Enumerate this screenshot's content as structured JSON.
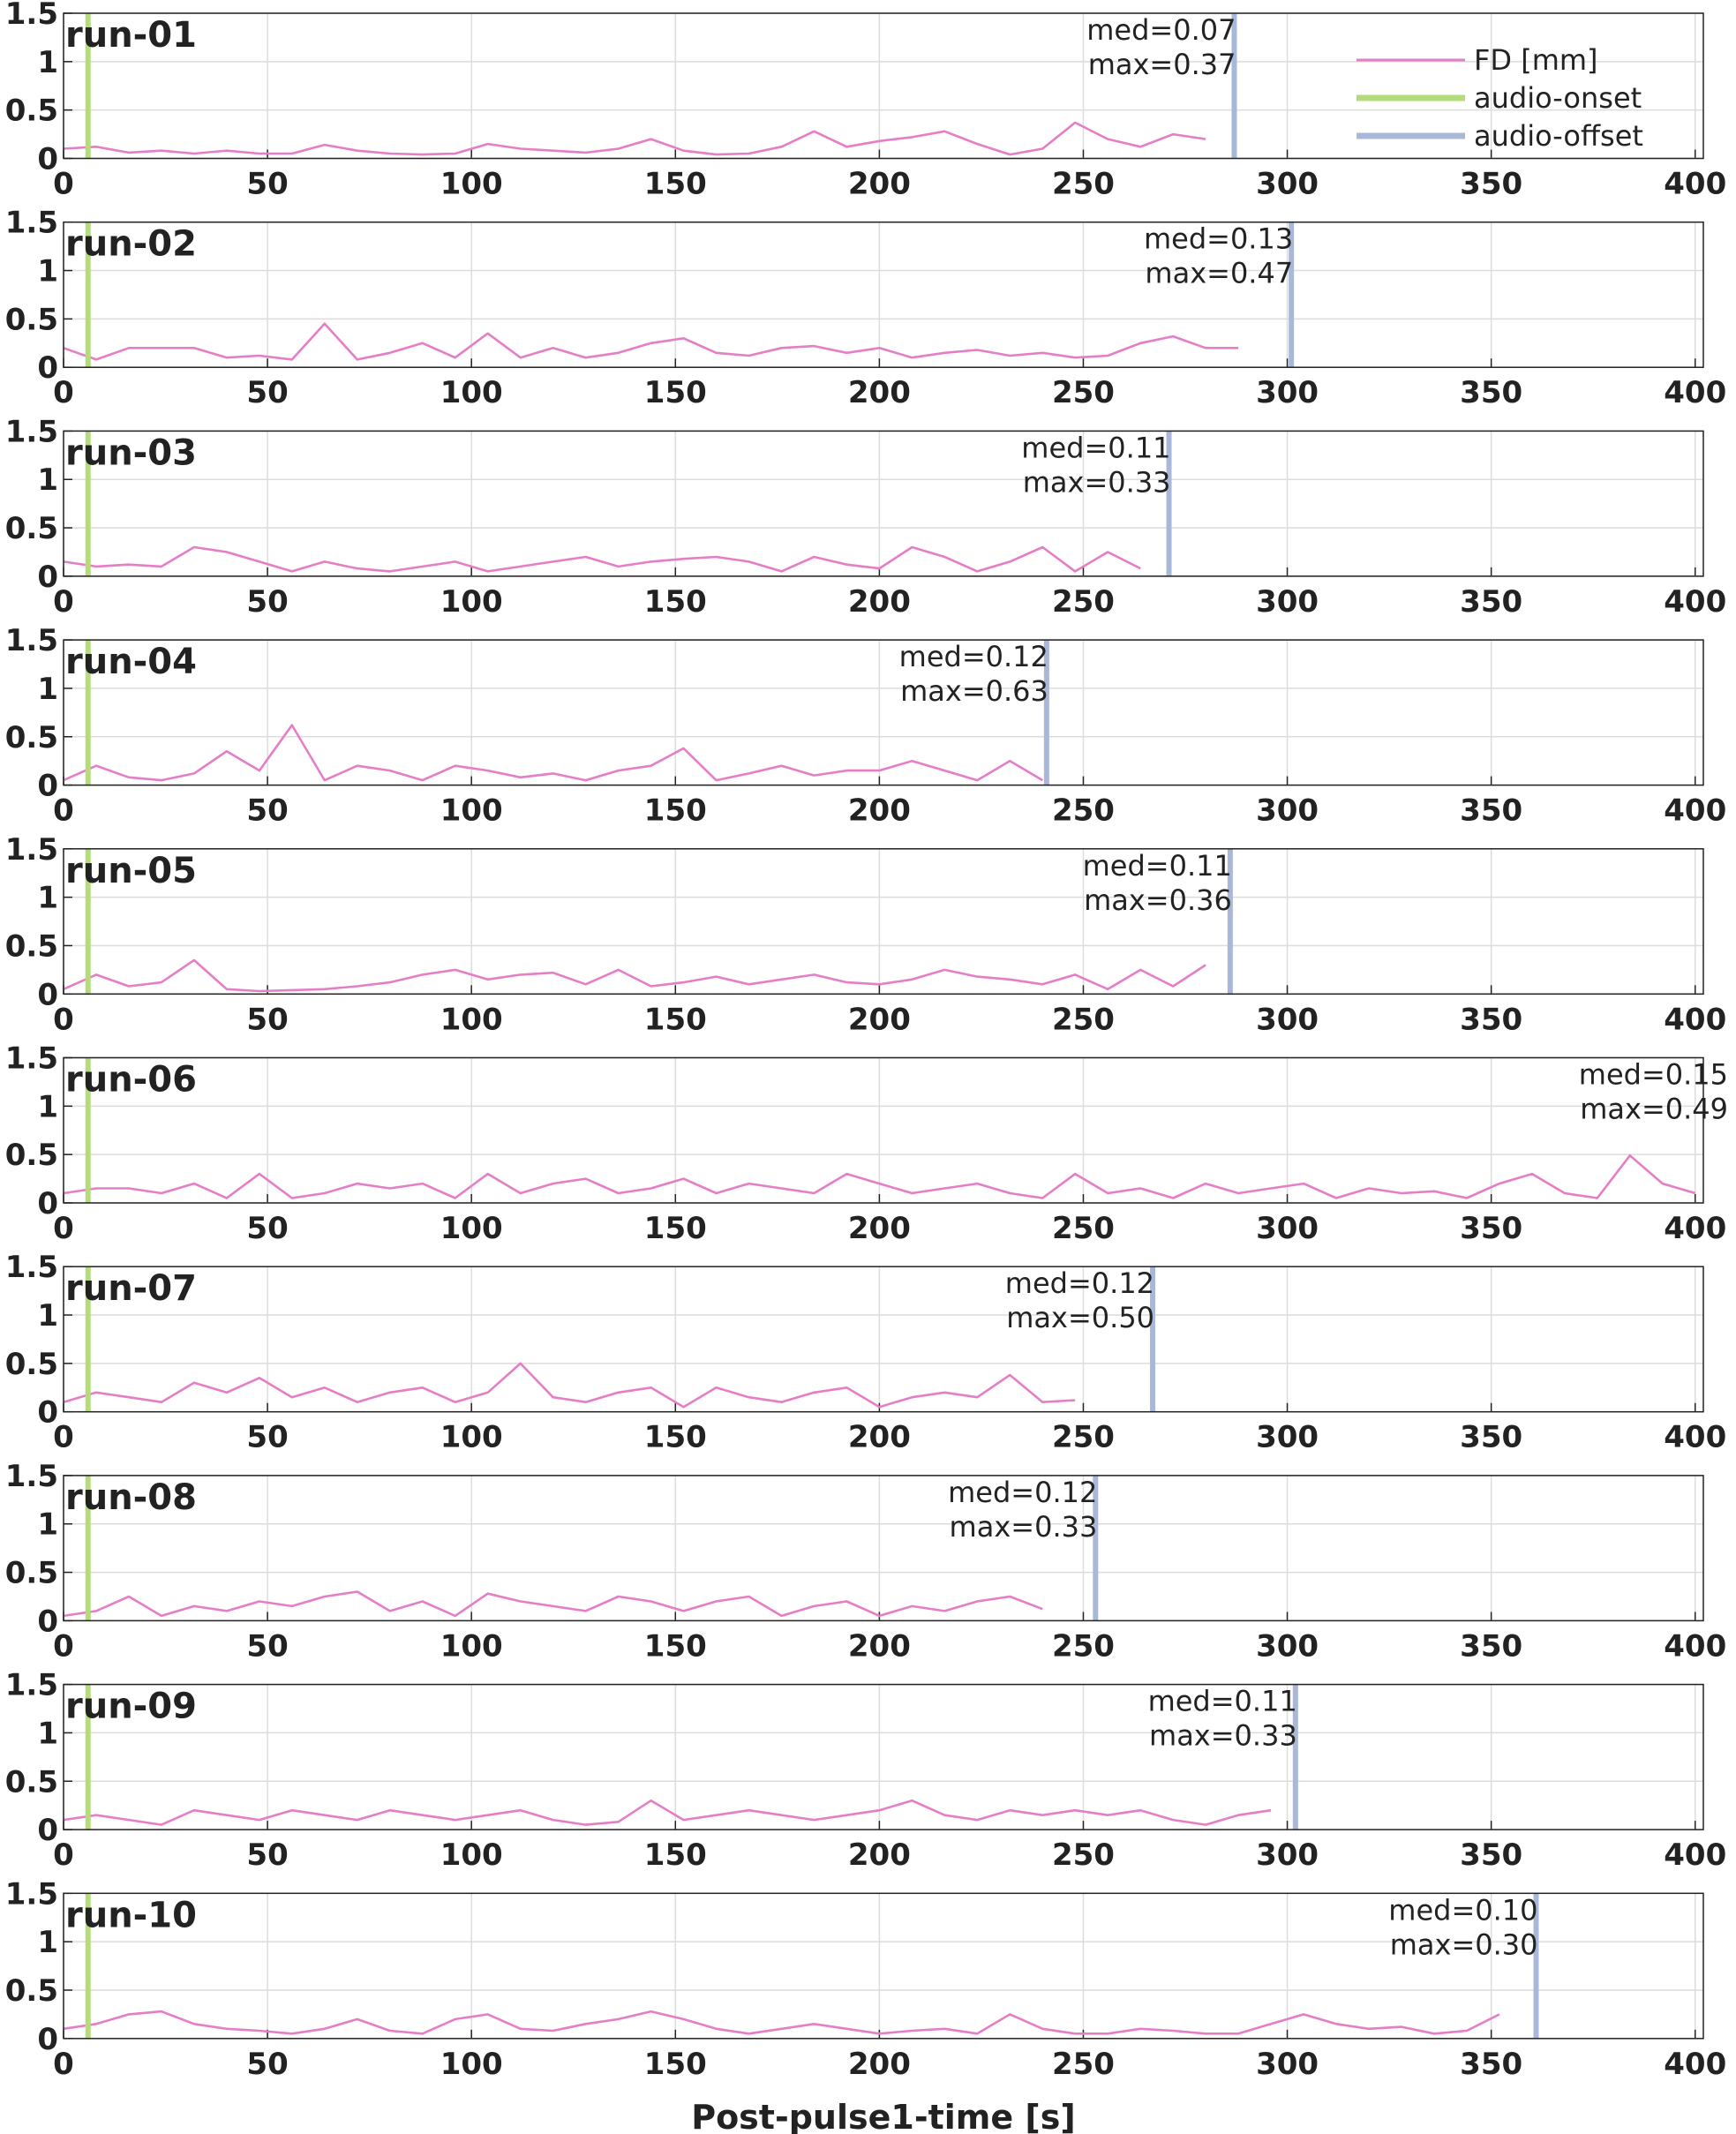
{
  "chart_data": [
    {
      "type": "line",
      "title": "run-01",
      "annotations": [
        "med=0.07",
        "max=0.37"
      ],
      "x": [
        0,
        8,
        16,
        24,
        32,
        40,
        48,
        56,
        64,
        72,
        80,
        88,
        96,
        104,
        112,
        120,
        128,
        136,
        144,
        152,
        160,
        168,
        176,
        184,
        192,
        200,
        208,
        216,
        224,
        232,
        240,
        248,
        256,
        264,
        272,
        280
      ],
      "series": [
        {
          "name": "FD [mm]",
          "color": "#e57ec6",
          "values": [
            0.1,
            0.12,
            0.06,
            0.08,
            0.05,
            0.08,
            0.05,
            0.05,
            0.14,
            0.08,
            0.05,
            0.04,
            0.05,
            0.15,
            0.1,
            0.08,
            0.06,
            0.1,
            0.2,
            0.08,
            0.04,
            0.05,
            0.12,
            0.28,
            0.12,
            0.18,
            0.22,
            0.28,
            0.15,
            0.04,
            0.1,
            0.37,
            0.2,
            0.12,
            0.25,
            0.2
          ]
        }
      ],
      "vlines": [
        {
          "name": "audio-onset",
          "color": "#b5dc7a",
          "x": 6
        },
        {
          "name": "audio-offset",
          "color": "#a9b8d8",
          "x": 287
        }
      ],
      "xlim": [
        0,
        402
      ],
      "xticks": [
        0,
        50,
        100,
        150,
        200,
        250,
        300,
        350,
        400
      ],
      "ylim": [
        0,
        1.5
      ],
      "yticks": [
        0,
        0.5,
        1,
        1.5
      ],
      "grid": true,
      "legend": "upper right"
    },
    {
      "type": "line",
      "title": "run-02",
      "annotations": [
        "med=0.13",
        "max=0.47"
      ],
      "x": [
        0,
        8,
        16,
        24,
        32,
        40,
        48,
        56,
        64,
        72,
        80,
        88,
        96,
        104,
        112,
        120,
        128,
        136,
        144,
        152,
        160,
        168,
        176,
        184,
        192,
        200,
        208,
        216,
        224,
        232,
        240,
        248,
        256,
        264,
        272,
        280,
        288
      ],
      "series": [
        {
          "color": "#e57ec6",
          "values": [
            0.2,
            0.08,
            0.2,
            0.2,
            0.2,
            0.1,
            0.12,
            0.08,
            0.45,
            0.08,
            0.15,
            0.25,
            0.1,
            0.35,
            0.1,
            0.2,
            0.1,
            0.15,
            0.25,
            0.3,
            0.15,
            0.12,
            0.2,
            0.22,
            0.15,
            0.2,
            0.1,
            0.15,
            0.18,
            0.12,
            0.15,
            0.1,
            0.12,
            0.25,
            0.32,
            0.2,
            0.2
          ]
        }
      ],
      "vlines": [
        {
          "color": "#b5dc7a",
          "x": 6
        },
        {
          "color": "#a9b8d8",
          "x": 301
        }
      ],
      "xlim": [
        0,
        402
      ],
      "xticks": [
        0,
        50,
        100,
        150,
        200,
        250,
        300,
        350,
        400
      ],
      "ylim": [
        0,
        1.5
      ],
      "yticks": [
        0,
        0.5,
        1,
        1.5
      ],
      "grid": true
    },
    {
      "type": "line",
      "title": "run-03",
      "annotations": [
        "med=0.11",
        "max=0.33"
      ],
      "x": [
        0,
        8,
        16,
        24,
        32,
        40,
        48,
        56,
        64,
        72,
        80,
        88,
        96,
        104,
        112,
        120,
        128,
        136,
        144,
        152,
        160,
        168,
        176,
        184,
        192,
        200,
        208,
        216,
        224,
        232,
        240,
        248,
        256,
        264
      ],
      "series": [
        {
          "color": "#e57ec6",
          "values": [
            0.15,
            0.1,
            0.12,
            0.1,
            0.3,
            0.25,
            0.15,
            0.05,
            0.15,
            0.08,
            0.05,
            0.1,
            0.15,
            0.05,
            0.1,
            0.15,
            0.2,
            0.1,
            0.15,
            0.18,
            0.2,
            0.15,
            0.05,
            0.2,
            0.12,
            0.08,
            0.3,
            0.2,
            0.05,
            0.15,
            0.3,
            0.05,
            0.25,
            0.08
          ]
        }
      ],
      "vlines": [
        {
          "color": "#b5dc7a",
          "x": 6
        },
        {
          "color": "#a9b8d8",
          "x": 271
        }
      ],
      "xlim": [
        0,
        402
      ],
      "xticks": [
        0,
        50,
        100,
        150,
        200,
        250,
        300,
        350,
        400
      ],
      "ylim": [
        0,
        1.5
      ],
      "yticks": [
        0,
        0.5,
        1,
        1.5
      ],
      "grid": true
    },
    {
      "type": "line",
      "title": "run-04",
      "annotations": [
        "med=0.12",
        "max=0.63"
      ],
      "x": [
        0,
        8,
        16,
        24,
        32,
        40,
        48,
        56,
        64,
        72,
        80,
        88,
        96,
        104,
        112,
        120,
        128,
        136,
        144,
        152,
        160,
        168,
        176,
        184,
        192,
        200,
        208,
        216,
        224,
        232,
        240
      ],
      "series": [
        {
          "color": "#e57ec6",
          "values": [
            0.05,
            0.2,
            0.08,
            0.05,
            0.12,
            0.35,
            0.15,
            0.62,
            0.05,
            0.2,
            0.15,
            0.05,
            0.2,
            0.15,
            0.08,
            0.12,
            0.05,
            0.15,
            0.2,
            0.38,
            0.05,
            0.12,
            0.2,
            0.1,
            0.15,
            0.15,
            0.25,
            0.15,
            0.05,
            0.25,
            0.05
          ]
        }
      ],
      "vlines": [
        {
          "color": "#b5dc7a",
          "x": 6
        },
        {
          "color": "#a9b8d8",
          "x": 241
        }
      ],
      "xlim": [
        0,
        402
      ],
      "xticks": [
        0,
        50,
        100,
        150,
        200,
        250,
        300,
        350,
        400
      ],
      "ylim": [
        0,
        1.5
      ],
      "yticks": [
        0,
        0.5,
        1,
        1.5
      ],
      "grid": true
    },
    {
      "type": "line",
      "title": "run-05",
      "annotations": [
        "med=0.11",
        "max=0.36"
      ],
      "x": [
        0,
        8,
        16,
        24,
        32,
        40,
        48,
        56,
        64,
        72,
        80,
        88,
        96,
        104,
        112,
        120,
        128,
        136,
        144,
        152,
        160,
        168,
        176,
        184,
        192,
        200,
        208,
        216,
        224,
        232,
        240,
        248,
        256,
        264,
        272,
        280
      ],
      "series": [
        {
          "color": "#e57ec6",
          "values": [
            0.05,
            0.2,
            0.08,
            0.12,
            0.35,
            0.05,
            0.03,
            0.04,
            0.05,
            0.08,
            0.12,
            0.2,
            0.25,
            0.15,
            0.2,
            0.22,
            0.1,
            0.25,
            0.08,
            0.12,
            0.18,
            0.1,
            0.15,
            0.2,
            0.12,
            0.1,
            0.15,
            0.25,
            0.18,
            0.15,
            0.1,
            0.2,
            0.05,
            0.25,
            0.08,
            0.3
          ]
        }
      ],
      "vlines": [
        {
          "color": "#b5dc7a",
          "x": 6
        },
        {
          "color": "#a9b8d8",
          "x": 286
        }
      ],
      "xlim": [
        0,
        402
      ],
      "xticks": [
        0,
        50,
        100,
        150,
        200,
        250,
        300,
        350,
        400
      ],
      "ylim": [
        0,
        1.5
      ],
      "yticks": [
        0,
        0.5,
        1,
        1.5
      ],
      "grid": true
    },
    {
      "type": "line",
      "title": "run-06",
      "annotations": [
        "med=0.15",
        "max=0.49"
      ],
      "x": [
        0,
        8,
        16,
        24,
        32,
        40,
        48,
        56,
        64,
        72,
        80,
        88,
        96,
        104,
        112,
        120,
        128,
        136,
        144,
        152,
        160,
        168,
        176,
        184,
        192,
        200,
        208,
        216,
        224,
        232,
        240,
        248,
        256,
        264,
        272,
        280,
        288,
        296,
        304,
        312,
        320,
        328,
        336,
        344,
        352,
        360,
        368,
        376,
        384,
        392,
        400
      ],
      "series": [
        {
          "color": "#e57ec6",
          "values": [
            0.1,
            0.15,
            0.15,
            0.1,
            0.2,
            0.05,
            0.3,
            0.05,
            0.1,
            0.2,
            0.15,
            0.2,
            0.05,
            0.3,
            0.1,
            0.2,
            0.25,
            0.1,
            0.15,
            0.25,
            0.1,
            0.2,
            0.15,
            0.1,
            0.3,
            0.2,
            0.1,
            0.15,
            0.2,
            0.1,
            0.05,
            0.3,
            0.1,
            0.15,
            0.05,
            0.2,
            0.1,
            0.15,
            0.2,
            0.05,
            0.15,
            0.1,
            0.12,
            0.05,
            0.2,
            0.3,
            0.1,
            0.05,
            0.49,
            0.2,
            0.1
          ]
        }
      ],
      "vlines": [
        {
          "color": "#b5dc7a",
          "x": 6
        }
      ],
      "xlim": [
        0,
        402
      ],
      "xticks": [
        0,
        50,
        100,
        150,
        200,
        250,
        300,
        350,
        400
      ],
      "ylim": [
        0,
        1.5
      ],
      "yticks": [
        0,
        0.5,
        1,
        1.5
      ],
      "grid": true
    },
    {
      "type": "line",
      "title": "run-07",
      "annotations": [
        "med=0.12",
        "max=0.50"
      ],
      "x": [
        0,
        8,
        16,
        24,
        32,
        40,
        48,
        56,
        64,
        72,
        80,
        88,
        96,
        104,
        112,
        120,
        128,
        136,
        144,
        152,
        160,
        168,
        176,
        184,
        192,
        200,
        208,
        216,
        224,
        232,
        240,
        248
      ],
      "series": [
        {
          "color": "#e57ec6",
          "values": [
            0.1,
            0.2,
            0.15,
            0.1,
            0.3,
            0.2,
            0.35,
            0.15,
            0.25,
            0.1,
            0.2,
            0.25,
            0.1,
            0.2,
            0.5,
            0.15,
            0.1,
            0.2,
            0.25,
            0.05,
            0.25,
            0.15,
            0.1,
            0.2,
            0.25,
            0.05,
            0.15,
            0.2,
            0.15,
            0.38,
            0.1,
            0.12
          ]
        }
      ],
      "vlines": [
        {
          "color": "#b5dc7a",
          "x": 6
        },
        {
          "color": "#a9b8d8",
          "x": 267
        }
      ],
      "xlim": [
        0,
        402
      ],
      "xticks": [
        0,
        50,
        100,
        150,
        200,
        250,
        300,
        350,
        400
      ],
      "ylim": [
        0,
        1.5
      ],
      "yticks": [
        0,
        0.5,
        1,
        1.5
      ],
      "grid": true
    },
    {
      "type": "line",
      "title": "run-08",
      "annotations": [
        "med=0.12",
        "max=0.33"
      ],
      "x": [
        0,
        8,
        16,
        24,
        32,
        40,
        48,
        56,
        64,
        72,
        80,
        88,
        96,
        104,
        112,
        120,
        128,
        136,
        144,
        152,
        160,
        168,
        176,
        184,
        192,
        200,
        208,
        216,
        224,
        232,
        240
      ],
      "series": [
        {
          "color": "#e57ec6",
          "values": [
            0.05,
            0.1,
            0.25,
            0.05,
            0.15,
            0.1,
            0.2,
            0.15,
            0.25,
            0.3,
            0.1,
            0.2,
            0.05,
            0.28,
            0.2,
            0.15,
            0.1,
            0.25,
            0.2,
            0.1,
            0.2,
            0.25,
            0.05,
            0.15,
            0.2,
            0.05,
            0.15,
            0.1,
            0.2,
            0.25,
            0.12
          ]
        }
      ],
      "vlines": [
        {
          "color": "#b5dc7a",
          "x": 6
        },
        {
          "color": "#a9b8d8",
          "x": 253
        }
      ],
      "xlim": [
        0,
        402
      ],
      "xticks": [
        0,
        50,
        100,
        150,
        200,
        250,
        300,
        350,
        400
      ],
      "ylim": [
        0,
        1.5
      ],
      "yticks": [
        0,
        0.5,
        1,
        1.5
      ],
      "grid": true
    },
    {
      "type": "line",
      "title": "run-09",
      "annotations": [
        "med=0.11",
        "max=0.33"
      ],
      "x": [
        0,
        8,
        16,
        24,
        32,
        40,
        48,
        56,
        64,
        72,
        80,
        88,
        96,
        104,
        112,
        120,
        128,
        136,
        144,
        152,
        160,
        168,
        176,
        184,
        192,
        200,
        208,
        216,
        224,
        232,
        240,
        248,
        256,
        264,
        272,
        280,
        288,
        296
      ],
      "series": [
        {
          "color": "#e57ec6",
          "values": [
            0.1,
            0.15,
            0.1,
            0.05,
            0.2,
            0.15,
            0.1,
            0.2,
            0.15,
            0.1,
            0.2,
            0.15,
            0.1,
            0.15,
            0.2,
            0.1,
            0.05,
            0.08,
            0.3,
            0.1,
            0.15,
            0.2,
            0.15,
            0.1,
            0.15,
            0.2,
            0.3,
            0.15,
            0.1,
            0.2,
            0.15,
            0.2,
            0.15,
            0.2,
            0.1,
            0.05,
            0.15,
            0.2
          ]
        }
      ],
      "vlines": [
        {
          "color": "#b5dc7a",
          "x": 6
        },
        {
          "color": "#a9b8d8",
          "x": 302
        }
      ],
      "xlim": [
        0,
        402
      ],
      "xticks": [
        0,
        50,
        100,
        150,
        200,
        250,
        300,
        350,
        400
      ],
      "ylim": [
        0,
        1.5
      ],
      "yticks": [
        0,
        0.5,
        1,
        1.5
      ],
      "grid": true
    },
    {
      "type": "line",
      "title": "run-10",
      "annotations": [
        "med=0.10",
        "max=0.30"
      ],
      "xlabel": "Post-pulse1-time [s]",
      "x": [
        0,
        8,
        16,
        24,
        32,
        40,
        48,
        56,
        64,
        72,
        80,
        88,
        96,
        104,
        112,
        120,
        128,
        136,
        144,
        152,
        160,
        168,
        176,
        184,
        192,
        200,
        208,
        216,
        224,
        232,
        240,
        248,
        256,
        264,
        272,
        280,
        288,
        296,
        304,
        312,
        320,
        328,
        336,
        344,
        352
      ],
      "series": [
        {
          "color": "#e57ec6",
          "values": [
            0.1,
            0.15,
            0.25,
            0.28,
            0.15,
            0.1,
            0.08,
            0.05,
            0.1,
            0.2,
            0.08,
            0.05,
            0.2,
            0.25,
            0.1,
            0.08,
            0.15,
            0.2,
            0.28,
            0.2,
            0.1,
            0.05,
            0.1,
            0.15,
            0.1,
            0.05,
            0.08,
            0.1,
            0.05,
            0.25,
            0.1,
            0.05,
            0.05,
            0.1,
            0.08,
            0.05,
            0.05,
            0.15,
            0.25,
            0.15,
            0.1,
            0.12,
            0.05,
            0.08,
            0.25
          ]
        }
      ],
      "vlines": [
        {
          "color": "#b5dc7a",
          "x": 6
        },
        {
          "color": "#a9b8d8",
          "x": 361
        }
      ],
      "xlim": [
        0,
        402
      ],
      "xticks": [
        0,
        50,
        100,
        150,
        200,
        250,
        300,
        350,
        400
      ],
      "ylim": [
        0,
        1.5
      ],
      "yticks": [
        0,
        0.5,
        1,
        1.5
      ],
      "grid": true
    }
  ]
}
